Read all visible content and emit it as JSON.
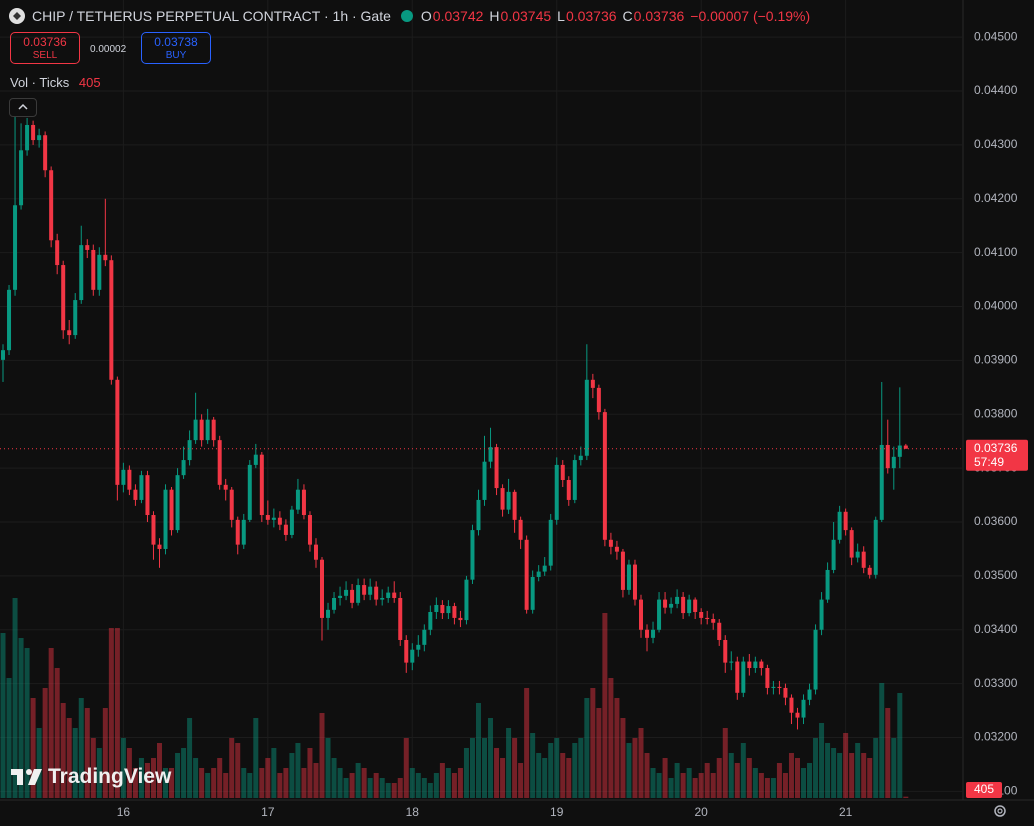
{
  "chart_data": {
    "type": "candlestick",
    "title": "CHIP / TETHERUS PERPETUAL CONTRACT · 1h · Gate",
    "ohlc_labels": [
      "O",
      "H",
      "L",
      "C"
    ],
    "change": "−0.00007 (−0.19%)",
    "sell_price": 0.03736,
    "sell_label": "SELL",
    "spread": 2e-05,
    "buy_price": 0.03738,
    "buy_label": "BUY",
    "volume_label": "Vol · Ticks",
    "countdown": "57:49",
    "logo": "TradingView",
    "up_color": "#089981",
    "down_color": "#f23645",
    "grid": true,
    "xlim": [
      3.5,
      163.5
    ],
    "xticks": [
      {
        "value": 24,
        "label": "16"
      },
      {
        "value": 48,
        "label": "17"
      },
      {
        "value": 72,
        "label": "18"
      },
      {
        "value": 96,
        "label": "19"
      },
      {
        "value": 120,
        "label": "20"
      },
      {
        "value": 144,
        "label": "21"
      }
    ],
    "ylim": [
      0.03084,
      0.04569
    ],
    "yticks": [
      {
        "value": 0.045,
        "label": "0.04500"
      },
      {
        "value": 0.044,
        "label": "0.04400"
      },
      {
        "value": 0.043,
        "label": "0.04300"
      },
      {
        "value": 0.042,
        "label": "0.04200"
      },
      {
        "value": 0.041,
        "label": "0.04100"
      },
      {
        "value": 0.04,
        "label": "0.04000"
      },
      {
        "value": 0.039,
        "label": "0.03900"
      },
      {
        "value": 0.038,
        "label": "0.03800"
      },
      {
        "value": 0.037,
        "label": "0.03700"
      },
      {
        "value": 0.036,
        "label": "0.03600"
      },
      {
        "value": 0.035,
        "label": "0.03500"
      },
      {
        "value": 0.034,
        "label": "0.03400"
      },
      {
        "value": 0.033,
        "label": "0.03300"
      },
      {
        "value": 0.032,
        "label": "0.03200"
      },
      {
        "value": 0.031,
        "label": "0.03100"
      }
    ],
    "y2lim": [
      0,
      60000
    ],
    "x": [
      4,
      5,
      6,
      7,
      8,
      9,
      10,
      11,
      12,
      13,
      14,
      15,
      16,
      17,
      18,
      19,
      20,
      21,
      22,
      23,
      24,
      25,
      26,
      27,
      28,
      29,
      30,
      31,
      32,
      33,
      34,
      35,
      36,
      37,
      38,
      39,
      40,
      41,
      42,
      43,
      44,
      45,
      46,
      47,
      48,
      49,
      50,
      51,
      52,
      53,
      54,
      55,
      56,
      57,
      58,
      59,
      60,
      61,
      62,
      63,
      64,
      65,
      66,
      67,
      68,
      69,
      70,
      71,
      72,
      73,
      74,
      75,
      76,
      77,
      78,
      79,
      80,
      81,
      82,
      83,
      84,
      85,
      86,
      87,
      88,
      89,
      90,
      91,
      92,
      93,
      94,
      95,
      96,
      97,
      98,
      99,
      100,
      101,
      102,
      103,
      104,
      105,
      106,
      107,
      108,
      109,
      110,
      111,
      112,
      113,
      114,
      115,
      116,
      117,
      118,
      119,
      120,
      121,
      122,
      123,
      124,
      125,
      126,
      127,
      128,
      129,
      130,
      131,
      132,
      133,
      134,
      135,
      136,
      137,
      138,
      139,
      140,
      141,
      142,
      143,
      144,
      145,
      146,
      147,
      148,
      149,
      150,
      151,
      152,
      153,
      154
    ],
    "open": [
      0.03901,
      0.03919,
      0.04031,
      0.04188,
      0.0429,
      0.04337,
      0.04309,
      0.04318,
      0.04253,
      0.04123,
      0.04077,
      0.03956,
      0.03947,
      0.04012,
      0.04114,
      0.04105,
      0.04031,
      0.04096,
      0.04086,
      0.03864,
      0.03669,
      0.03697,
      0.0366,
      0.03641,
      0.03687,
      0.03613,
      0.03558,
      0.0355,
      0.0366,
      0.03585,
      0.03687,
      0.03715,
      0.03752,
      0.0379,
      0.03752,
      0.0379,
      0.03752,
      0.03669,
      0.0366,
      0.03604,
      0.03558,
      0.03604,
      0.03706,
      0.03725,
      0.03613,
      0.03604,
      0.03608,
      0.03595,
      0.03576,
      0.03623,
      0.0366,
      0.03613,
      0.03558,
      0.0353,
      0.03422,
      0.03437,
      0.03459,
      0.03463,
      0.03474,
      0.0345,
      0.03483,
      0.03465,
      0.0348,
      0.03456,
      0.03459,
      0.03469,
      0.03459,
      0.03381,
      0.03339,
      0.03363,
      0.03372,
      0.034,
      0.03433,
      0.03446,
      0.03431,
      0.03444,
      0.03422,
      0.03418,
      0.03493,
      0.03585,
      0.03641,
      0.03712,
      0.03739,
      0.03663,
      0.03623,
      0.03656,
      0.03604,
      0.03567,
      0.03437,
      0.03498,
      0.03508,
      0.03519,
      0.03604,
      0.03706,
      0.03678,
      0.03641,
      0.03715,
      0.03723,
      0.03864,
      0.03849,
      0.03804,
      0.03567,
      0.03554,
      0.03545,
      0.03474,
      0.03521,
      0.03456,
      0.034,
      0.03385,
      0.034,
      0.03456,
      0.03441,
      0.03448,
      0.03461,
      0.03431,
      0.03456,
      0.03433,
      0.03422,
      0.0342,
      0.03413,
      0.03381,
      0.03339,
      0.03341,
      0.03283,
      0.03341,
      0.03329,
      0.03341,
      0.03329,
      0.03292,
      0.03294,
      0.03292,
      0.03274,
      0.03246,
      0.03237,
      0.0327,
      0.03289,
      0.034,
      0.03456,
      0.03511,
      0.03567,
      0.03619,
      0.03585,
      0.03534,
      0.03545,
      0.03515,
      0.03502,
      0.03604,
      0.03743,
      0.037,
      0.03721,
      0.03742
    ],
    "high": [
      0.0393,
      0.0404,
      0.0436,
      0.0434,
      0.0435,
      0.04345,
      0.0433,
      0.04325,
      0.0426,
      0.04135,
      0.04085,
      0.03975,
      0.04025,
      0.0415,
      0.04125,
      0.04115,
      0.0411,
      0.042,
      0.04095,
      0.0387,
      0.0371,
      0.03705,
      0.0367,
      0.03695,
      0.03695,
      0.0362,
      0.0357,
      0.0367,
      0.03665,
      0.037,
      0.0374,
      0.0377,
      0.0384,
      0.038,
      0.0381,
      0.03795,
      0.0376,
      0.0368,
      0.03665,
      0.0361,
      0.03615,
      0.03715,
      0.03745,
      0.0373,
      0.0364,
      0.03625,
      0.0362,
      0.03605,
      0.0363,
      0.0368,
      0.0367,
      0.0362,
      0.0357,
      0.03535,
      0.0345,
      0.0347,
      0.0348,
      0.0349,
      0.03485,
      0.03495,
      0.03495,
      0.03495,
      0.0349,
      0.03475,
      0.0348,
      0.0349,
      0.0347,
      0.0339,
      0.03375,
      0.0339,
      0.0341,
      0.03445,
      0.0346,
      0.03455,
      0.03455,
      0.0345,
      0.03435,
      0.035,
      0.03595,
      0.0366,
      0.0376,
      0.03775,
      0.03745,
      0.0367,
      0.0368,
      0.0366,
      0.0361,
      0.03575,
      0.0351,
      0.0352,
      0.03535,
      0.03615,
      0.0372,
      0.03715,
      0.03685,
      0.03725,
      0.0374,
      0.0393,
      0.03875,
      0.03855,
      0.0381,
      0.0358,
      0.03565,
      0.0355,
      0.0353,
      0.0353,
      0.03465,
      0.0341,
      0.03415,
      0.0347,
      0.0347,
      0.0346,
      0.03475,
      0.0347,
      0.03465,
      0.0346,
      0.0344,
      0.03435,
      0.0343,
      0.0342,
      0.0339,
      0.0336,
      0.0335,
      0.0335,
      0.03355,
      0.0335,
      0.03345,
      0.03335,
      0.03305,
      0.03305,
      0.033,
      0.0328,
      0.03255,
      0.0328,
      0.033,
      0.0341,
      0.0347,
      0.03525,
      0.036,
      0.0363,
      0.03625,
      0.0359,
      0.0356,
      0.03555,
      0.0352,
      0.0361,
      0.0386,
      0.0379,
      0.0374,
      0.0385,
      0.03745
    ],
    "low": [
      0.0386,
      0.0391,
      0.0402,
      0.0418,
      0.0428,
      0.043,
      0.04295,
      0.0424,
      0.0411,
      0.0406,
      0.0394,
      0.0393,
      0.0394,
      0.04005,
      0.0409,
      0.0402,
      0.0402,
      0.04075,
      0.03855,
      0.0364,
      0.03655,
      0.0365,
      0.0363,
      0.03635,
      0.036,
      0.0353,
      0.03515,
      0.0354,
      0.03575,
      0.0358,
      0.0368,
      0.03705,
      0.03745,
      0.0374,
      0.03745,
      0.0374,
      0.0366,
      0.0364,
      0.0359,
      0.0354,
      0.0355,
      0.036,
      0.037,
      0.036,
      0.03595,
      0.0359,
      0.03585,
      0.03565,
      0.0357,
      0.03615,
      0.03605,
      0.03545,
      0.03515,
      0.0338,
      0.034,
      0.0343,
      0.03445,
      0.03455,
      0.0344,
      0.03445,
      0.03455,
      0.03455,
      0.03445,
      0.03445,
      0.0345,
      0.0345,
      0.0337,
      0.0332,
      0.03325,
      0.0335,
      0.0336,
      0.0339,
      0.0342,
      0.0342,
      0.0342,
      0.0341,
      0.03405,
      0.0341,
      0.03485,
      0.03575,
      0.0363,
      0.037,
      0.0365,
      0.0361,
      0.03615,
      0.0358,
      0.0355,
      0.0343,
      0.0343,
      0.0349,
      0.035,
      0.0351,
      0.03595,
      0.03665,
      0.0363,
      0.03635,
      0.03705,
      0.03715,
      0.0383,
      0.0379,
      0.03555,
      0.0354,
      0.0353,
      0.0346,
      0.03465,
      0.03445,
      0.03385,
      0.0336,
      0.03375,
      0.03395,
      0.0343,
      0.0343,
      0.0344,
      0.0342,
      0.03425,
      0.0342,
      0.0341,
      0.0341,
      0.034,
      0.0337,
      0.0332,
      0.03325,
      0.0327,
      0.03275,
      0.03315,
      0.0332,
      0.03315,
      0.0328,
      0.0328,
      0.0328,
      0.0326,
      0.03225,
      0.03215,
      0.03225,
      0.0326,
      0.0328,
      0.0339,
      0.0345,
      0.03505,
      0.0356,
      0.03575,
      0.0352,
      0.03525,
      0.03505,
      0.03495,
      0.03495,
      0.036,
      0.0369,
      0.0366,
      0.037,
      0.03736
    ],
    "close": [
      0.03919,
      0.04031,
      0.04188,
      0.0429,
      0.04337,
      0.04309,
      0.04318,
      0.04253,
      0.04123,
      0.04077,
      0.03956,
      0.03947,
      0.04012,
      0.04114,
      0.04105,
      0.04031,
      0.04096,
      0.04086,
      0.03864,
      0.03669,
      0.03697,
      0.0366,
      0.03641,
      0.03687,
      0.03613,
      0.03558,
      0.0355,
      0.0366,
      0.03585,
      0.03687,
      0.03715,
      0.03752,
      0.0379,
      0.03752,
      0.0379,
      0.03752,
      0.03669,
      0.0366,
      0.03604,
      0.03558,
      0.03604,
      0.03706,
      0.03725,
      0.03613,
      0.03604,
      0.03608,
      0.03595,
      0.03576,
      0.03623,
      0.0366,
      0.03613,
      0.03558,
      0.0353,
      0.03422,
      0.03437,
      0.03459,
      0.03463,
      0.03474,
      0.0345,
      0.03483,
      0.03465,
      0.0348,
      0.03456,
      0.03459,
      0.03469,
      0.03459,
      0.03381,
      0.03339,
      0.03363,
      0.03372,
      0.034,
      0.03433,
      0.03446,
      0.03431,
      0.03444,
      0.03422,
      0.03418,
      0.03493,
      0.03585,
      0.03641,
      0.03712,
      0.03739,
      0.03663,
      0.03623,
      0.03656,
      0.03604,
      0.03567,
      0.03437,
      0.03498,
      0.03508,
      0.03519,
      0.03604,
      0.03706,
      0.03678,
      0.03641,
      0.03715,
      0.03723,
      0.03864,
      0.03849,
      0.03804,
      0.03567,
      0.03554,
      0.03545,
      0.03474,
      0.03521,
      0.03456,
      0.034,
      0.03385,
      0.034,
      0.03456,
      0.03441,
      0.03448,
      0.03461,
      0.03431,
      0.03456,
      0.03433,
      0.03422,
      0.0342,
      0.03413,
      0.03381,
      0.03339,
      0.03341,
      0.03283,
      0.03341,
      0.03329,
      0.03341,
      0.03329,
      0.03292,
      0.03294,
      0.03292,
      0.03274,
      0.03246,
      0.03237,
      0.0327,
      0.03289,
      0.034,
      0.03456,
      0.03511,
      0.03567,
      0.03619,
      0.03585,
      0.03534,
      0.03545,
      0.03515,
      0.03502,
      0.03604,
      0.03743,
      0.037,
      0.03721,
      0.03742,
      0.03736
    ],
    "volume": [
      49500,
      36000,
      60000,
      48000,
      45000,
      30000,
      21000,
      33000,
      45000,
      39000,
      28500,
      24000,
      21000,
      30000,
      27000,
      18000,
      15000,
      27000,
      51000,
      51000,
      18000,
      15000,
      9000,
      12000,
      10500,
      12000,
      16500,
      9000,
      9000,
      13500,
      15000,
      24000,
      12000,
      9000,
      7500,
      9000,
      12000,
      7500,
      18000,
      16500,
      9000,
      7500,
      24000,
      9000,
      12000,
      15000,
      7500,
      9000,
      13500,
      16500,
      9000,
      15000,
      10500,
      25500,
      18000,
      12000,
      9000,
      6000,
      7500,
      10500,
      9000,
      6000,
      7500,
      6000,
      4500,
      4500,
      6000,
      18000,
      9000,
      7500,
      6000,
      4500,
      7500,
      10500,
      9000,
      7500,
      9000,
      15000,
      18000,
      28500,
      18000,
      24000,
      15000,
      12000,
      21000,
      18000,
      10500,
      33000,
      19500,
      13500,
      12000,
      16500,
      18000,
      13500,
      12000,
      16500,
      18000,
      30000,
      33000,
      27000,
      55500,
      36000,
      30000,
      24000,
      16500,
      18000,
      21000,
      13500,
      9000,
      7500,
      12000,
      6000,
      10500,
      7500,
      9000,
      6000,
      7500,
      10500,
      7500,
      12000,
      21000,
      13500,
      10500,
      16500,
      12000,
      9000,
      7500,
      6000,
      6000,
      10500,
      7500,
      13500,
      12000,
      9000,
      10500,
      18000,
      22500,
      16500,
      15000,
      13500,
      19500,
      13500,
      16500,
      13500,
      12000,
      18000,
      34500,
      27000,
      18000,
      31500,
      405
    ]
  }
}
